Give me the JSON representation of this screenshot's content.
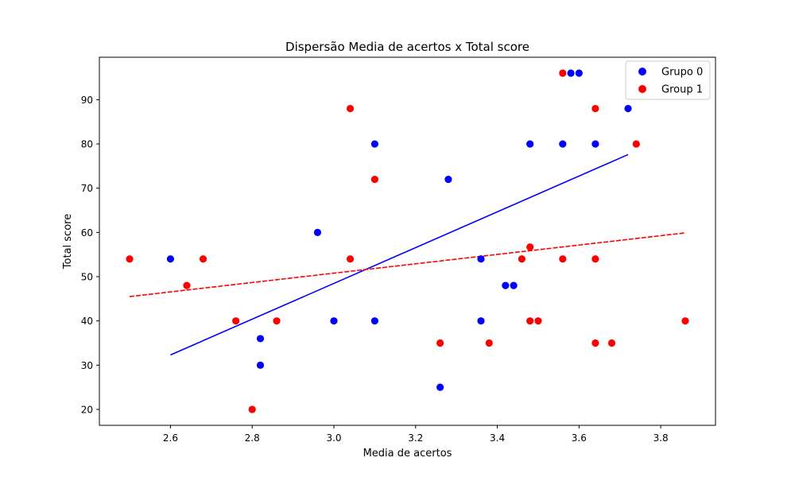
{
  "chart_data": {
    "type": "scatter",
    "title": "Dispersão Media de acertos x Total score",
    "xlabel": "Media de acertos",
    "ylabel": "Total score",
    "xlim": [
      2.426,
      3.934
    ],
    "ylim": [
      16.4,
      99.6
    ],
    "xticks": [
      2.6,
      2.8,
      3.0,
      3.2,
      3.4,
      3.6,
      3.8
    ],
    "xtick_labels": [
      "2.6",
      "2.8",
      "3.0",
      "3.2",
      "3.4",
      "3.6",
      "3.8"
    ],
    "yticks": [
      20,
      30,
      40,
      50,
      60,
      70,
      80,
      90
    ],
    "ytick_labels": [
      "20",
      "30",
      "40",
      "50",
      "60",
      "70",
      "80",
      "90"
    ],
    "grid": false,
    "legend_position": "top-right",
    "series": [
      {
        "name": "Grupo 0",
        "color": "#0000ff",
        "points": [
          [
            2.6,
            54
          ],
          [
            2.82,
            36
          ],
          [
            2.82,
            30
          ],
          [
            2.96,
            60
          ],
          [
            3.0,
            40
          ],
          [
            3.1,
            80
          ],
          [
            3.1,
            40
          ],
          [
            3.26,
            25
          ],
          [
            3.28,
            72
          ],
          [
            3.36,
            54
          ],
          [
            3.36,
            40
          ],
          [
            3.42,
            48
          ],
          [
            3.44,
            48
          ],
          [
            3.48,
            80
          ],
          [
            3.56,
            80
          ],
          [
            3.58,
            96
          ],
          [
            3.6,
            96
          ],
          [
            3.64,
            80
          ],
          [
            3.72,
            88
          ]
        ],
        "trendline": {
          "x": [
            2.6,
            3.72
          ],
          "y": [
            32.3,
            77.6
          ],
          "style": "solid"
        }
      },
      {
        "name": "Group 1",
        "color": "#ff0000",
        "points": [
          [
            2.5,
            54
          ],
          [
            2.64,
            48
          ],
          [
            2.68,
            54
          ],
          [
            2.76,
            40
          ],
          [
            2.8,
            20
          ],
          [
            2.86,
            40
          ],
          [
            3.04,
            88
          ],
          [
            3.04,
            54
          ],
          [
            3.1,
            72
          ],
          [
            3.26,
            35
          ],
          [
            3.38,
            35
          ],
          [
            3.46,
            54
          ],
          [
            3.48,
            56.7
          ],
          [
            3.48,
            40
          ],
          [
            3.5,
            40
          ],
          [
            3.56,
            96
          ],
          [
            3.56,
            54
          ],
          [
            3.64,
            88
          ],
          [
            3.64,
            54
          ],
          [
            3.64,
            35
          ],
          [
            3.68,
            35
          ],
          [
            3.74,
            80
          ],
          [
            3.86,
            40
          ]
        ],
        "trendline": {
          "x": [
            2.5,
            3.86
          ],
          "y": [
            45.5,
            59.9
          ],
          "style": "dashed"
        }
      }
    ]
  }
}
